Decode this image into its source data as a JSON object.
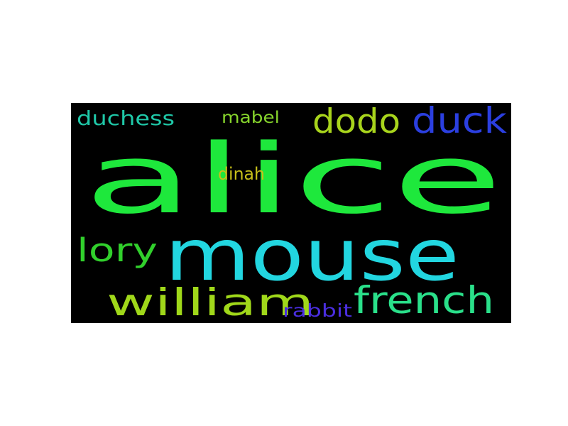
{
  "word_cloud": {
    "background_color": "#000000",
    "words": [
      {
        "text": "alice",
        "color": "#1ee83c"
      },
      {
        "text": "mouse",
        "color": "#22d6e0"
      },
      {
        "text": "william",
        "color": "#a0d81a"
      },
      {
        "text": "french",
        "color": "#2ae08a"
      },
      {
        "text": "dodo",
        "color": "#a8d41c"
      },
      {
        "text": "duck",
        "color": "#2b3fe0"
      },
      {
        "text": "lory",
        "color": "#31d02c"
      },
      {
        "text": "duchess",
        "color": "#1fc8a8"
      },
      {
        "text": "mabel",
        "color": "#86d42c"
      },
      {
        "text": "dinah",
        "color": "#c8c01a"
      },
      {
        "text": "rabbit",
        "color": "#4a2ee0"
      }
    ]
  }
}
